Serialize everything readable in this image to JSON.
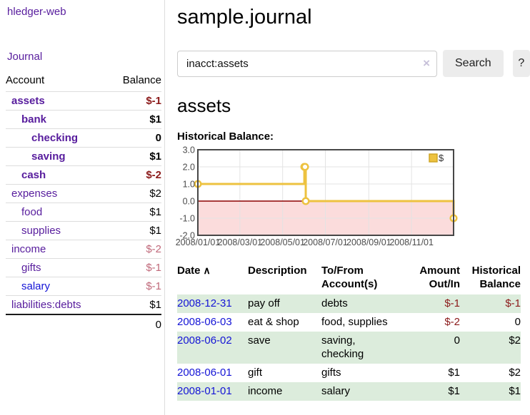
{
  "app": {
    "brand": "hledger-web",
    "nav_journal": "Journal"
  },
  "colors": {
    "link_purple": "#571c9d",
    "link_blue": "#1414d6",
    "negative_strong": "#8b1a1a",
    "negative_soft": "#c0697a",
    "stripe_green": "#dcecdc",
    "chart_line_gold": "#edc240"
  },
  "sidebar": {
    "headers": {
      "account": "Account",
      "balance": "Balance"
    },
    "accounts": [
      {
        "name": "assets",
        "depth": 1,
        "balance": "$-1",
        "match": true,
        "neg": true,
        "unvisited": false
      },
      {
        "name": "bank",
        "depth": 2,
        "balance": "$1",
        "match": true,
        "neg": false,
        "unvisited": false
      },
      {
        "name": "checking",
        "depth": 3,
        "balance": "0",
        "match": true,
        "neg": false,
        "unvisited": false
      },
      {
        "name": "saving",
        "depth": 3,
        "balance": "$1",
        "match": true,
        "neg": false,
        "unvisited": false
      },
      {
        "name": "cash",
        "depth": 2,
        "balance": "$-2",
        "match": true,
        "neg": true,
        "unvisited": false
      },
      {
        "name": "expenses",
        "depth": 1,
        "balance": "$2",
        "match": false,
        "neg": false,
        "unvisited": false
      },
      {
        "name": "food",
        "depth": 2,
        "balance": "$1",
        "match": false,
        "neg": false,
        "unvisited": false
      },
      {
        "name": "supplies",
        "depth": 2,
        "balance": "$1",
        "match": false,
        "neg": false,
        "unvisited": false
      },
      {
        "name": "income",
        "depth": 1,
        "balance": "$-2",
        "match": false,
        "neg": true,
        "unvisited": false
      },
      {
        "name": "gifts",
        "depth": 2,
        "balance": "$-1",
        "match": false,
        "neg": true,
        "unvisited": false
      },
      {
        "name": "salary",
        "depth": 2,
        "balance": "$-1",
        "match": false,
        "neg": true,
        "unvisited": true
      },
      {
        "name": "liabilities:debts",
        "depth": 1,
        "balance": "$1",
        "match": false,
        "neg": false,
        "unvisited": false
      }
    ],
    "total": "0"
  },
  "main": {
    "title": "sample.journal",
    "search": {
      "value": "inacct:assets",
      "clear_icon": "×",
      "button": "Search",
      "help": "?"
    },
    "section_title": "assets",
    "chart_label": "Historical Balance:"
  },
  "chart_data": {
    "type": "line",
    "title": "Historical Balance:",
    "legend": [
      {
        "label": "$",
        "position": "top-right"
      }
    ],
    "x_range": [
      "2008-01-01",
      "2008-12-31"
    ],
    "ylim": [
      -2,
      3
    ],
    "y_ticks": [
      3.0,
      2.0,
      1.0,
      0.0,
      -1.0,
      -2.0
    ],
    "x_ticks": [
      {
        "date": "2008-01-01",
        "label": "2008/01/01"
      },
      {
        "date": "2008-03-01",
        "label": "2008/03/01"
      },
      {
        "date": "2008-05-01",
        "label": "2008/05/01"
      },
      {
        "date": "2008-07-01",
        "label": "2008/07/01"
      },
      {
        "date": "2008-09-01",
        "label": "2008/09/01"
      },
      {
        "date": "2008-11-01",
        "label": "2008/11/01"
      }
    ],
    "series": [
      {
        "name": "$",
        "step": true,
        "points": [
          [
            "2008-01-01",
            1
          ],
          [
            "2008-06-01",
            2
          ],
          [
            "2008-06-02",
            2
          ],
          [
            "2008-06-03",
            0
          ],
          [
            "2008-12-31",
            -1
          ]
        ]
      }
    ],
    "styles": {
      "line_color": "#edc240",
      "line_border": "#cda322",
      "marker_fill": "#ffffff",
      "negative_fill": "#fbdcdc",
      "zero_line_color": "#8b0000",
      "grid_color": "#e3e3e3",
      "border_color": "#474747",
      "tick_text": "#4c4c4c"
    }
  },
  "register": {
    "headers": {
      "date": "Date",
      "sort_icon": "∧",
      "description": "Description",
      "accounts": "To/From Account(s)",
      "amount": "Amount Out/In",
      "balance": "Historical Balance"
    },
    "rows": [
      {
        "date": "2008-12-31",
        "description": "pay off",
        "accounts": "debts",
        "amount": "$-1",
        "amount_neg": true,
        "balance": "$-1",
        "balance_neg": true,
        "stripe": true
      },
      {
        "date": "2008-06-03",
        "description": "eat & shop",
        "accounts": "food, supplies",
        "amount": "$-2",
        "amount_neg": true,
        "balance": "0",
        "balance_neg": false,
        "stripe": false
      },
      {
        "date": "2008-06-02",
        "description": "save",
        "accounts": "saving, checking",
        "amount": "0",
        "amount_neg": false,
        "balance": "$2",
        "balance_neg": false,
        "stripe": true
      },
      {
        "date": "2008-06-01",
        "description": "gift",
        "accounts": "gifts",
        "amount": "$1",
        "amount_neg": false,
        "balance": "$2",
        "balance_neg": false,
        "stripe": false
      },
      {
        "date": "2008-01-01",
        "description": "income",
        "accounts": "salary",
        "amount": "$1",
        "amount_neg": false,
        "balance": "$1",
        "balance_neg": false,
        "stripe": true
      }
    ]
  }
}
